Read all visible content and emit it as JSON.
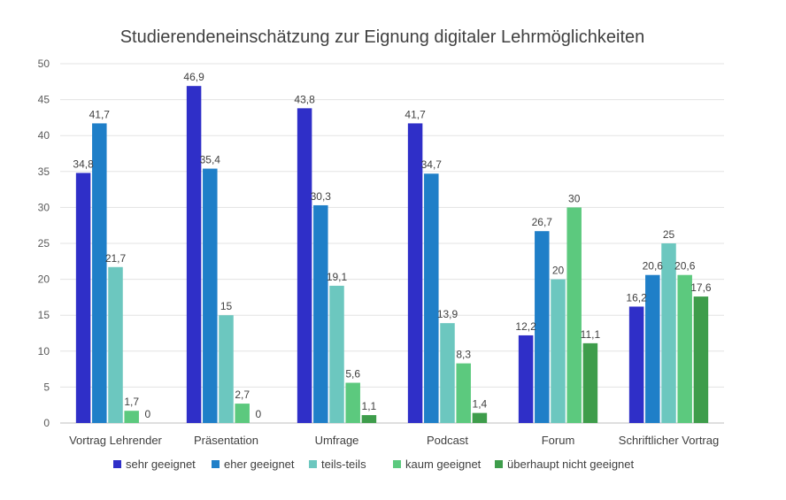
{
  "chart_data": {
    "type": "bar",
    "title": "Studierendeneinschätzung zur Eignung digitaler Lehrmöglichkeiten",
    "xlabel": "",
    "ylabel": "",
    "ylim": [
      0,
      50
    ],
    "yticks": [
      "0",
      "5",
      "10",
      "15",
      "20",
      "25",
      "30",
      "35",
      "40",
      "45",
      "50"
    ],
    "grid": true,
    "legend_position": "bottom",
    "categories": [
      "Vortrag Lehrender",
      "Präsentation",
      "Umfrage",
      "Podcast",
      "Forum",
      "Schriftlicher Vortrag"
    ],
    "series": [
      {
        "name": "sehr geeignet",
        "color": "#2f2fc8",
        "values": [
          34.8,
          46.9,
          43.8,
          41.7,
          12.2,
          16.2
        ],
        "labels": [
          "34,8",
          "46,9",
          "43,8",
          "41,7",
          "12,2",
          "16,2"
        ]
      },
      {
        "name": "eher geeignet",
        "color": "#1f7fc8",
        "values": [
          41.7,
          35.4,
          30.3,
          34.7,
          26.7,
          20.6
        ],
        "labels": [
          "41,7",
          "35,4",
          "30,3",
          "34,7",
          "26,7",
          "20,6"
        ]
      },
      {
        "name": "teils-teils",
        "color": "#6cc7bf",
        "values": [
          21.7,
          15,
          19.1,
          13.9,
          20,
          25
        ],
        "labels": [
          "21,7",
          "15",
          "19,1",
          "13,9",
          "20",
          "25"
        ]
      },
      {
        "name": "kaum geeignet",
        "color": "#5cc97e",
        "values": [
          1.7,
          2.7,
          5.6,
          8.3,
          30,
          20.6
        ],
        "labels": [
          "1,7",
          "2,7",
          "5,6",
          "8,3",
          "30",
          "20,6"
        ]
      },
      {
        "name": "überhaupt nicht geeignet",
        "color": "#3e9d4b",
        "values": [
          0,
          0,
          1.1,
          1.4,
          11.1,
          17.6
        ],
        "labels": [
          "0",
          "0",
          "1,1",
          "1,4",
          "11,1",
          "17,6"
        ]
      }
    ]
  }
}
